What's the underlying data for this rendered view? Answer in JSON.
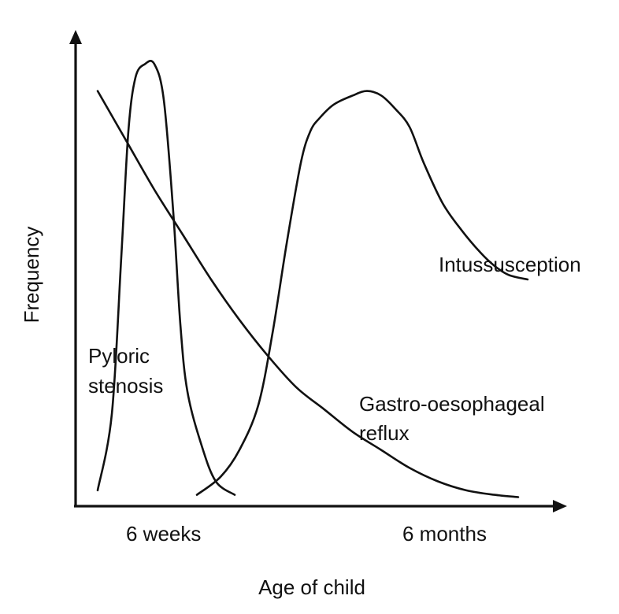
{
  "chart_data": {
    "type": "line",
    "title": "",
    "xlabel": "Age of child",
    "ylabel": "Frequency",
    "x_ticks": [
      "6 weeks",
      "6 months"
    ],
    "xlim": [
      0,
      100
    ],
    "ylim": [
      0,
      100
    ],
    "grid": false,
    "legend": "none",
    "series": [
      {
        "name": "Pyloric stenosis",
        "label_lines": [
          "Pyloric",
          "stenosis"
        ],
        "x": [
          4,
          7,
          9,
          10.5,
          12,
          14,
          16,
          18,
          20,
          21.5,
          23,
          26,
          29,
          33
        ],
        "y": [
          3,
          20,
          55,
          83,
          95,
          98,
          98,
          90,
          65,
          40,
          25,
          13,
          5,
          2
        ]
      },
      {
        "name": "Gastro-oesophageal reflux",
        "label_lines": [
          "Gastro-oesophageal",
          "reflux"
        ],
        "x": [
          4,
          10,
          16,
          22,
          28,
          34,
          40,
          46,
          52,
          58,
          64,
          70,
          76,
          82,
          88,
          93
        ],
        "y": [
          92,
          81,
          70,
          60,
          50,
          41,
          33,
          26,
          21,
          16,
          12,
          8,
          5,
          3,
          2,
          1.5
        ]
      },
      {
        "name": "Intussusception",
        "label_lines": [
          "Intussusception"
        ],
        "x": [
          25,
          30,
          34,
          38,
          41,
          44,
          47,
          49,
          51,
          54,
          58,
          61,
          64,
          67,
          70,
          73,
          77,
          81,
          85,
          88,
          91,
          95
        ],
        "y": [
          2,
          6,
          12,
          22,
          38,
          58,
          76,
          83,
          86,
          89,
          91,
          92,
          91,
          88,
          84,
          76,
          67,
          61,
          56,
          53,
          51,
          50
        ]
      }
    ]
  }
}
